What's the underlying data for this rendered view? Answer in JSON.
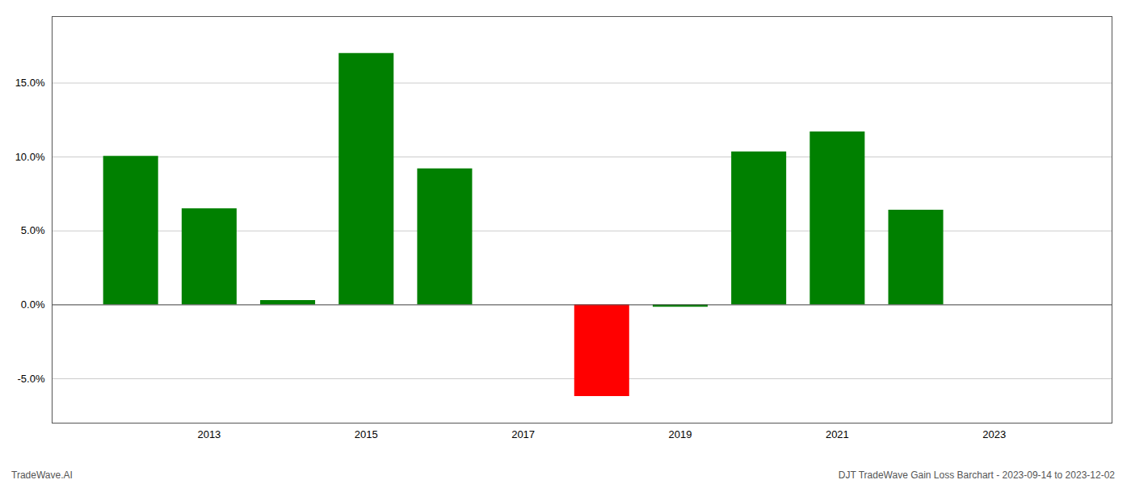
{
  "chart_data": {
    "type": "bar",
    "title": "DJT TradeWave Gain Loss Barchart - 2023-09-14 to 2023-12-02",
    "annotations": [
      "TradeWave.AI"
    ],
    "x": [
      2012,
      2013,
      2014,
      2015,
      2016,
      2018,
      2019,
      2020,
      2021,
      2022
    ],
    "values": [
      10.05,
      6.5,
      0.3,
      17.0,
      9.2,
      -6.2,
      -0.15,
      10.35,
      11.7,
      6.4
    ],
    "colors": [
      "#008000",
      "#008000",
      "#008000",
      "#008000",
      "#008000",
      "#ff0000",
      "#008000",
      "#008000",
      "#008000",
      "#008000"
    ],
    "xlim": [
      2011.0,
      2024.5
    ],
    "xticks": [
      2013,
      2015,
      2017,
      2019,
      2021,
      2023
    ],
    "ylim": [
      -8.0,
      19.5
    ],
    "yticks": [
      {
        "value": -5.0,
        "label": "-5.0%"
      },
      {
        "value": 0.0,
        "label": "0.0%"
      },
      {
        "value": 5.0,
        "label": "5.0%"
      },
      {
        "value": 10.0,
        "label": "10.0%"
      },
      {
        "value": 15.0,
        "label": "15.0%"
      }
    ],
    "grid": "y"
  }
}
